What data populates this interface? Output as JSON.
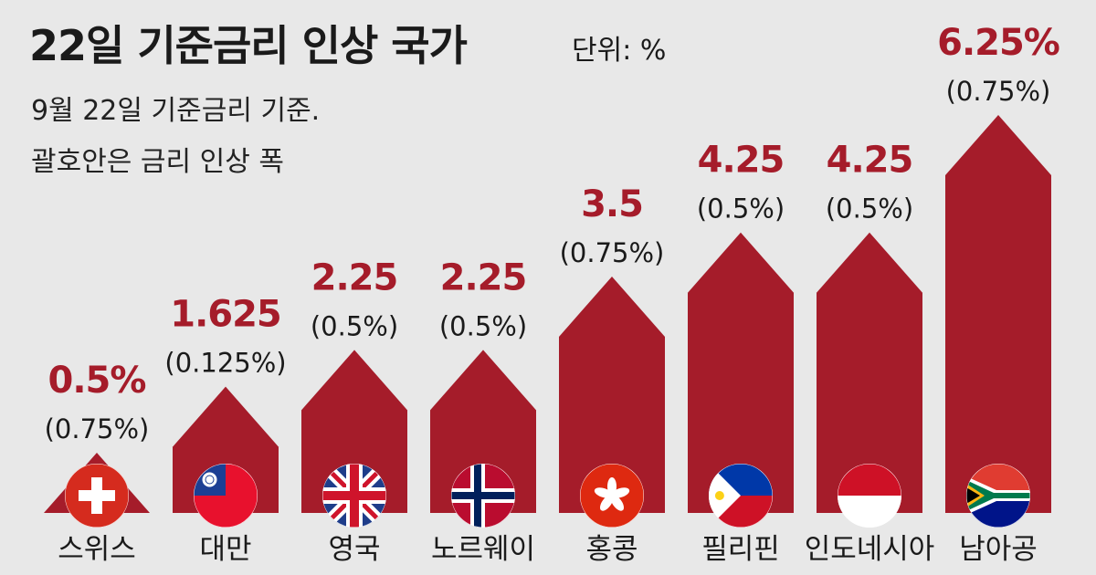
{
  "header": {
    "title": "22일 기준금리 인상 국가",
    "unit": "단위: %",
    "subtitle_line1": "9월 22일 기준금리 기준.",
    "subtitle_line2": "괄호안은 금리 인상 폭"
  },
  "colors": {
    "bar": "#a51c2a",
    "value_text": "#a51c2a",
    "background": "#e8e8e8",
    "text": "#1a1a1a"
  },
  "chart_data": {
    "type": "bar",
    "title": "22일 기준금리 인상 국가",
    "unit": "%",
    "categories": [
      "스위스",
      "대만",
      "영국",
      "노르웨이",
      "홍콩",
      "필리핀",
      "인도네시아",
      "남아공"
    ],
    "values": [
      0.5,
      1.625,
      2.25,
      2.25,
      3.5,
      4.25,
      4.25,
      6.25
    ],
    "value_labels": [
      "0.5%",
      "1.625",
      "2.25",
      "2.25",
      "3.5",
      "4.25",
      "4.25",
      "6.25%"
    ],
    "increase_labels": [
      "(0.75%)",
      "(0.125%)",
      "(0.5%)",
      "(0.5%)",
      "(0.75%)",
      "(0.5%)",
      "(0.5%)",
      "(0.75%)"
    ],
    "flag_icons": [
      "switzerland-flag-icon",
      "taiwan-flag-icon",
      "uk-flag-icon",
      "norway-flag-icon",
      "hongkong-flag-icon",
      "philippines-flag-icon",
      "indonesia-flag-icon",
      "south-africa-flag-icon"
    ],
    "ylim": [
      0,
      6.25
    ],
    "grid": false,
    "legend": "none"
  }
}
